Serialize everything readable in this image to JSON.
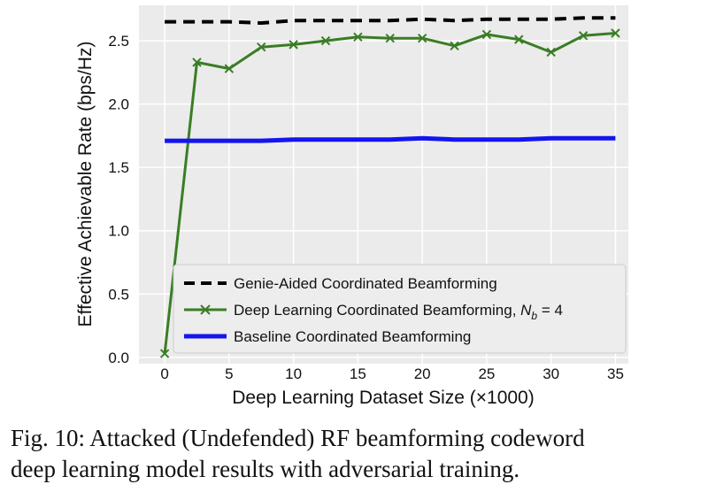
{
  "chart_data": {
    "type": "line",
    "xlabel": "Deep Learning Dataset Size (×1000)",
    "ylabel": "Effective Achievable Rate (bps/Hz)",
    "xlim": [
      -2,
      36
    ],
    "ylim": [
      -0.05,
      2.78
    ],
    "xticks": [
      0,
      5,
      10,
      15,
      20,
      25,
      30,
      35
    ],
    "yticks": [
      0.0,
      0.5,
      1.0,
      1.5,
      2.0,
      2.5
    ],
    "xtick_labels": [
      "0",
      "5",
      "10",
      "15",
      "20",
      "25",
      "30",
      "35"
    ],
    "ytick_labels": [
      "0.0",
      "0.5",
      "1.0",
      "1.5",
      "2.0",
      "2.5"
    ],
    "grid": true,
    "legend_position": "lower-right",
    "series": [
      {
        "name": "Genie-Aided Coordinated Beamforming",
        "color": "#000000",
        "style": "dashed",
        "x": [
          0,
          2.5,
          5,
          7.5,
          10,
          12.5,
          15,
          17.5,
          20,
          22.5,
          25,
          27.5,
          30,
          32.5,
          35
        ],
        "y": [
          2.65,
          2.65,
          2.65,
          2.64,
          2.66,
          2.66,
          2.66,
          2.66,
          2.67,
          2.66,
          2.67,
          2.67,
          2.67,
          2.68,
          2.68
        ]
      },
      {
        "name": "Deep Learning Coordinated Beamforming, N_b = 4",
        "name_prefix": "Deep Learning Coordinated Beamforming, ",
        "name_math": "N",
        "name_sub": "b",
        "name_suffix": " = 4",
        "color": "#3a7d25",
        "style": "solid",
        "marker": "x",
        "x": [
          0,
          2.5,
          5,
          7.5,
          10,
          12.5,
          15,
          17.5,
          20,
          22.5,
          25,
          27.5,
          30,
          32.5,
          35
        ],
        "y": [
          0.03,
          2.33,
          2.28,
          2.45,
          2.47,
          2.5,
          2.53,
          2.52,
          2.52,
          2.46,
          2.55,
          2.51,
          2.41,
          2.54,
          2.56
        ]
      },
      {
        "name": "Baseline Coordinated Beamforming",
        "color": "#1414f0",
        "style": "solid",
        "x": [
          0,
          2.5,
          5,
          7.5,
          10,
          12.5,
          15,
          17.5,
          20,
          22.5,
          25,
          27.5,
          30,
          32.5,
          35
        ],
        "y": [
          1.71,
          1.71,
          1.71,
          1.71,
          1.72,
          1.72,
          1.72,
          1.72,
          1.73,
          1.72,
          1.72,
          1.72,
          1.73,
          1.73,
          1.73
        ]
      }
    ]
  },
  "caption": {
    "line1": "Fig. 10: Attacked (Undefended) RF beamforming codeword",
    "line2": "deep learning model results with adversarial training."
  }
}
